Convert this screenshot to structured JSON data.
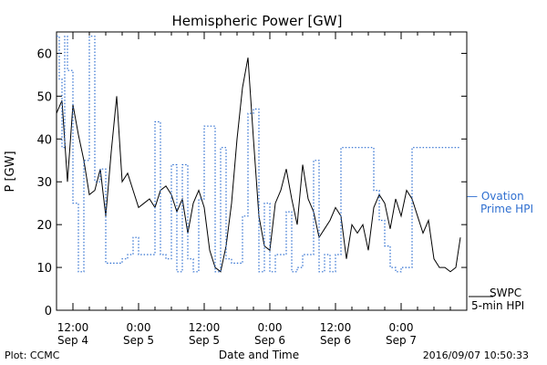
{
  "chart_data": {
    "type": "line",
    "title": "Hemispheric Power [GW]",
    "xlabel": "Date and Time",
    "ylabel": "P [GW]",
    "ylim": [
      0,
      65
    ],
    "xlim": [
      "2016-09-04 09:00",
      "2016-09-07 12:00"
    ],
    "yticks": [
      0,
      10,
      20,
      30,
      40,
      50,
      60
    ],
    "xticks": [
      {
        "at": "2016-09-04 12:00",
        "line1": "12:00",
        "line2": "Sep 4"
      },
      {
        "at": "2016-09-05 00:00",
        "line1": "0:00",
        "line2": "Sep 5"
      },
      {
        "at": "2016-09-05 12:00",
        "line1": "12:00",
        "line2": "Sep 5"
      },
      {
        "at": "2016-09-06 00:00",
        "line1": "0:00",
        "line2": "Sep 6"
      },
      {
        "at": "2016-09-06 12:00",
        "line1": "12:00",
        "line2": "Sep 6"
      },
      {
        "at": "2016-09-07 00:00",
        "line1": "0:00",
        "line2": "Sep 7"
      }
    ],
    "grid": false,
    "legend_position": "right",
    "series": [
      {
        "name": "SWPC 5-min HPI",
        "legend_line1": "SWPC",
        "legend_line2": "5-min HPI",
        "style": "solid",
        "color": "#000000",
        "x": [
          "2016-09-04 09:00",
          "2016-09-04 10:00",
          "2016-09-04 11:00",
          "2016-09-04 12:00",
          "2016-09-04 13:00",
          "2016-09-04 14:00",
          "2016-09-04 15:00",
          "2016-09-04 16:00",
          "2016-09-04 17:00",
          "2016-09-04 18:00",
          "2016-09-04 19:00",
          "2016-09-04 20:00",
          "2016-09-04 21:00",
          "2016-09-04 22:00",
          "2016-09-04 23:00",
          "2016-09-05 00:00",
          "2016-09-05 01:00",
          "2016-09-05 02:00",
          "2016-09-05 03:00",
          "2016-09-05 04:00",
          "2016-09-05 05:00",
          "2016-09-05 06:00",
          "2016-09-05 07:00",
          "2016-09-05 08:00",
          "2016-09-05 09:00",
          "2016-09-05 10:00",
          "2016-09-05 11:00",
          "2016-09-05 12:00",
          "2016-09-05 13:00",
          "2016-09-05 14:00",
          "2016-09-05 15:00",
          "2016-09-05 16:00",
          "2016-09-05 17:00",
          "2016-09-05 18:00",
          "2016-09-05 19:00",
          "2016-09-05 20:00",
          "2016-09-05 21:00",
          "2016-09-05 22:00",
          "2016-09-05 23:00",
          "2016-09-06 00:00",
          "2016-09-06 01:00",
          "2016-09-06 02:00",
          "2016-09-06 03:00",
          "2016-09-06 04:00",
          "2016-09-06 05:00",
          "2016-09-06 06:00",
          "2016-09-06 07:00",
          "2016-09-06 08:00",
          "2016-09-06 09:00",
          "2016-09-06 10:00",
          "2016-09-06 11:00",
          "2016-09-06 12:00",
          "2016-09-06 13:00",
          "2016-09-06 14:00",
          "2016-09-06 15:00",
          "2016-09-06 16:00",
          "2016-09-06 17:00",
          "2016-09-06 18:00",
          "2016-09-06 19:00",
          "2016-09-06 20:00",
          "2016-09-06 21:00",
          "2016-09-06 22:00",
          "2016-09-06 23:00",
          "2016-09-07 00:00",
          "2016-09-07 01:00",
          "2016-09-07 02:00",
          "2016-09-07 03:00",
          "2016-09-07 04:00",
          "2016-09-07 05:00",
          "2016-09-07 06:00",
          "2016-09-07 07:00",
          "2016-09-07 08:00",
          "2016-09-07 09:00",
          "2016-09-07 10:00",
          "2016-09-07 10:50"
        ],
        "y": [
          46,
          49,
          30,
          48,
          41,
          35,
          27,
          28,
          33,
          22,
          37,
          50,
          30,
          32,
          28,
          24,
          25,
          26,
          24,
          28,
          29,
          27,
          23,
          26,
          18,
          25,
          28,
          24,
          14,
          10,
          9,
          15,
          25,
          40,
          52,
          59,
          40,
          22,
          15,
          14,
          25,
          28,
          33,
          26,
          20,
          34,
          26,
          23,
          17,
          19,
          21,
          24,
          22,
          12,
          20,
          18,
          20,
          14,
          24,
          27,
          25,
          19,
          26,
          22,
          28,
          26,
          22,
          18,
          21,
          12,
          10,
          10,
          9,
          10,
          17
        ]
      },
      {
        "name": "Ovation Prime HPI",
        "legend_line1": "— Ovation",
        "legend_line2": "Prime HPI",
        "style": "dotted",
        "color": "#2f6fd0",
        "x": [
          "2016-09-04 09:00",
          "2016-09-04 09:30",
          "2016-09-04 10:00",
          "2016-09-04 10:30",
          "2016-09-04 11:00",
          "2016-09-04 12:00",
          "2016-09-04 13:00",
          "2016-09-04 14:00",
          "2016-09-04 15:00",
          "2016-09-04 16:00",
          "2016-09-04 17:00",
          "2016-09-04 18:00",
          "2016-09-04 19:00",
          "2016-09-04 20:00",
          "2016-09-04 21:00",
          "2016-09-04 22:00",
          "2016-09-04 23:00",
          "2016-09-05 00:00",
          "2016-09-05 02:00",
          "2016-09-05 03:00",
          "2016-09-05 04:00",
          "2016-09-05 05:00",
          "2016-09-05 06:00",
          "2016-09-05 07:00",
          "2016-09-05 08:00",
          "2016-09-05 09:00",
          "2016-09-05 10:00",
          "2016-09-05 11:00",
          "2016-09-05 12:00",
          "2016-09-05 13:00",
          "2016-09-05 14:00",
          "2016-09-05 15:00",
          "2016-09-05 16:00",
          "2016-09-05 17:00",
          "2016-09-05 18:00",
          "2016-09-05 19:00",
          "2016-09-05 20:00",
          "2016-09-05 21:00",
          "2016-09-05 22:00",
          "2016-09-05 23:00",
          "2016-09-06 00:00",
          "2016-09-06 01:00",
          "2016-09-06 03:00",
          "2016-09-06 04:00",
          "2016-09-06 05:00",
          "2016-09-06 06:00",
          "2016-09-06 07:00",
          "2016-09-06 08:00",
          "2016-09-06 09:00",
          "2016-09-06 10:00",
          "2016-09-06 11:00",
          "2016-09-06 12:00",
          "2016-09-06 13:00",
          "2016-09-06 14:00",
          "2016-09-06 15:00",
          "2016-09-06 16:00",
          "2016-09-06 17:00",
          "2016-09-06 18:00",
          "2016-09-06 19:00",
          "2016-09-06 20:00",
          "2016-09-06 21:00",
          "2016-09-06 22:00",
          "2016-09-06 23:00",
          "2016-09-07 00:00",
          "2016-09-07 02:00",
          "2016-09-07 04:00",
          "2016-09-07 05:00",
          "2016-09-07 06:00",
          "2016-09-07 07:00",
          "2016-09-07 08:00",
          "2016-09-07 09:00",
          "2016-09-07 10:00",
          "2016-09-07 10:50"
        ],
        "y": [
          64,
          54,
          38,
          64,
          56,
          25,
          9,
          35,
          64,
          30,
          33,
          11,
          11,
          11,
          12,
          13,
          17,
          13,
          13,
          44,
          13,
          12,
          34,
          9,
          34,
          12,
          9,
          26,
          43,
          43,
          9,
          38,
          12,
          11,
          11,
          22,
          46,
          47,
          9,
          25,
          9,
          13,
          23,
          9,
          10,
          13,
          13,
          35,
          9,
          13,
          9,
          13,
          38,
          38,
          38,
          38,
          38,
          38,
          28,
          21,
          15,
          10,
          9,
          10,
          38,
          38,
          38,
          38,
          38,
          38,
          38,
          38,
          38
        ]
      }
    ]
  },
  "footer": {
    "left": "Plot: CCMC",
    "right": "2016/09/07 10:50:33"
  }
}
